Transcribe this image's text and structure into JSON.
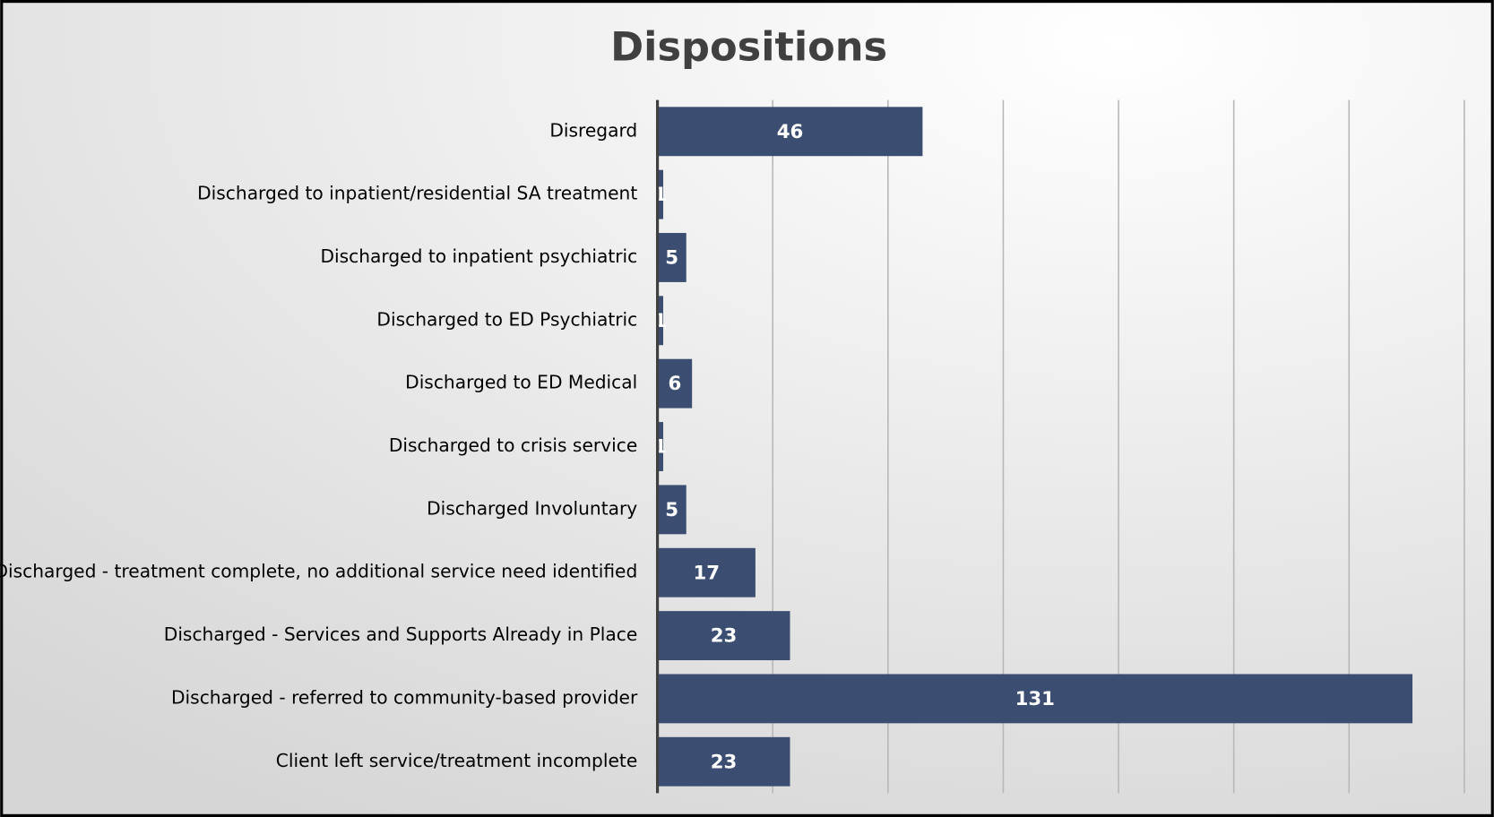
{
  "chart_data": {
    "type": "bar",
    "orientation": "horizontal",
    "title": "Dispositions",
    "categories": [
      "Disregard",
      "Discharged to inpatient/residential SA treatment",
      "Discharged to inpatient psychiatric",
      "Discharged to ED Psychiatric",
      "Discharged to ED Medical",
      "Discharged to crisis service",
      "Discharged Involuntary",
      "Discharged - treatment complete, no additional service need identified",
      "Discharged - Services and Supports Already in Place",
      "Discharged - referred to community-based provider",
      "Client left service/treatment incomplete"
    ],
    "values": [
      46,
      1,
      5,
      1,
      6,
      1,
      5,
      17,
      23,
      131,
      23
    ],
    "color": "#3b4e72",
    "xlim": [
      0,
      140
    ],
    "xticks": [
      0,
      20,
      40,
      60,
      80,
      100,
      120,
      140
    ],
    "grid": true
  }
}
